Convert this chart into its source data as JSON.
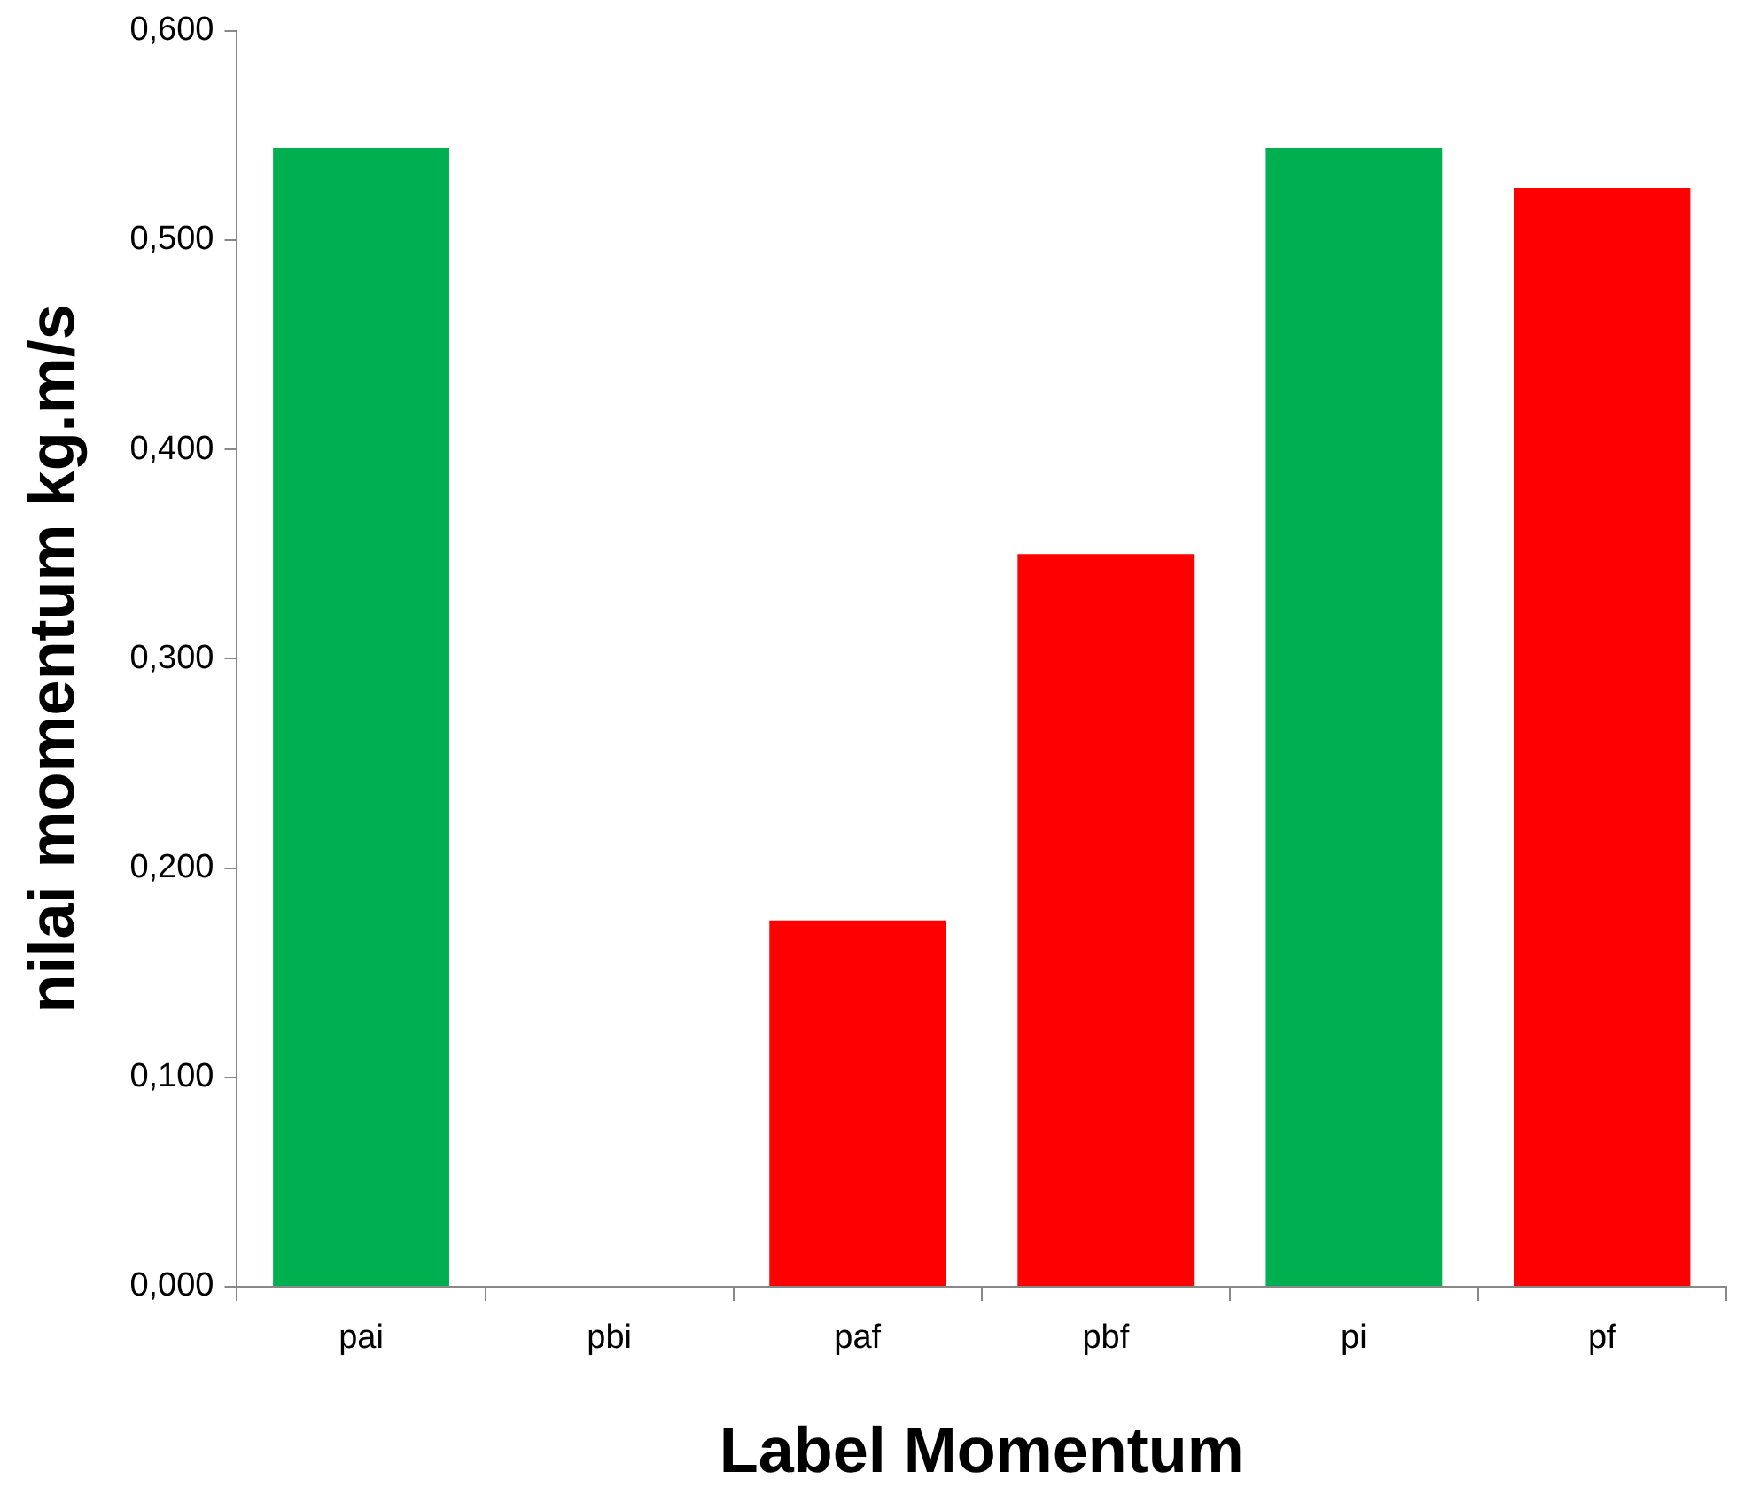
{
  "chart_data": {
    "type": "bar",
    "xlabel": "Label Momentum",
    "ylabel": "nilai momentum kg.m/s",
    "categories": [
      "pai",
      "pbi",
      "paf",
      "pbf",
      "pi",
      "pf"
    ],
    "values": [
      0.544,
      0,
      0.175,
      0.35,
      0.544,
      0.525
    ],
    "colors": [
      "#00b050",
      "#00b050",
      "#ff0000",
      "#ff0000",
      "#00b050",
      "#ff0000"
    ],
    "ylim": [
      0,
      0.6
    ],
    "yticks": [
      {
        "value": 0,
        "label": "0,000"
      },
      {
        "value": 0.1,
        "label": "0,100"
      },
      {
        "value": 0.2,
        "label": "0,200"
      },
      {
        "value": 0.3,
        "label": "0,300"
      },
      {
        "value": 0.4,
        "label": "0,400"
      },
      {
        "value": 0.5,
        "label": "0,500"
      },
      {
        "value": 0.6,
        "label": "0,600"
      }
    ],
    "grid": false,
    "legend": false
  }
}
